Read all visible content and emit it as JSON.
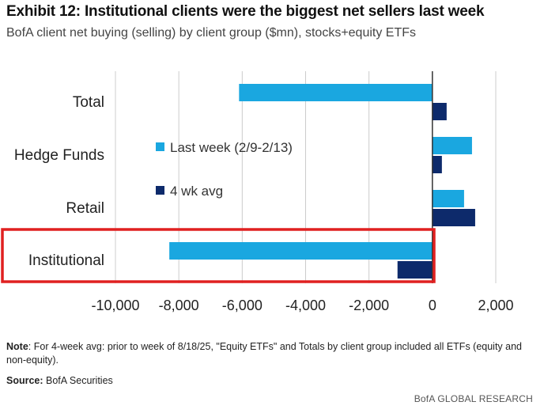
{
  "title": "Exhibit 12: Institutional clients were the biggest net sellers last week",
  "subtitle": "BofA client net buying (selling) by client group ($mn), stocks+equity ETFs",
  "note": {
    "label": "Note",
    "text": ": For 4-week avg: prior to week of 8/18/25, \"Equity ETFs\" and Totals by client group included all ETFs (equity and non-equity)."
  },
  "source": {
    "label": "Source:",
    "text": " BofA Securities"
  },
  "footer": {
    "brand": "BofA",
    "text": " GLOBAL RESEARCH"
  },
  "colors": {
    "last_week": "#1aa7e0",
    "avg_4wk": "#0d2a6b",
    "highlight": "#e02020",
    "grid": "#cccccc"
  },
  "chart_data": {
    "type": "bar",
    "orientation": "horizontal",
    "title": "Exhibit 12: Institutional clients were the biggest net sellers last week",
    "subtitle": "BofA client net buying (selling) by client group ($mn), stocks+equity ETFs",
    "categories": [
      "Total",
      "Hedge Funds",
      "Retail",
      "Institutional"
    ],
    "series": [
      {
        "name": "Last week (2/9-2/13)",
        "values": [
          -6100,
          1250,
          1000,
          -8300
        ]
      },
      {
        "name": "4 wk avg",
        "values": [
          450,
          300,
          1350,
          -1100
        ]
      }
    ],
    "xlim": [
      -10000,
      2000
    ],
    "xticks": [
      -10000,
      -8000,
      -6000,
      -4000,
      -2000,
      0,
      2000
    ],
    "xtick_labels": [
      "-10,000",
      "-8,000",
      "-6,000",
      "-4,000",
      "-2,000",
      "0",
      "2,000"
    ],
    "xlabel": "",
    "ylabel": "",
    "grid": "vertical",
    "legend_position": "center-left",
    "highlight_category": "Institutional"
  }
}
